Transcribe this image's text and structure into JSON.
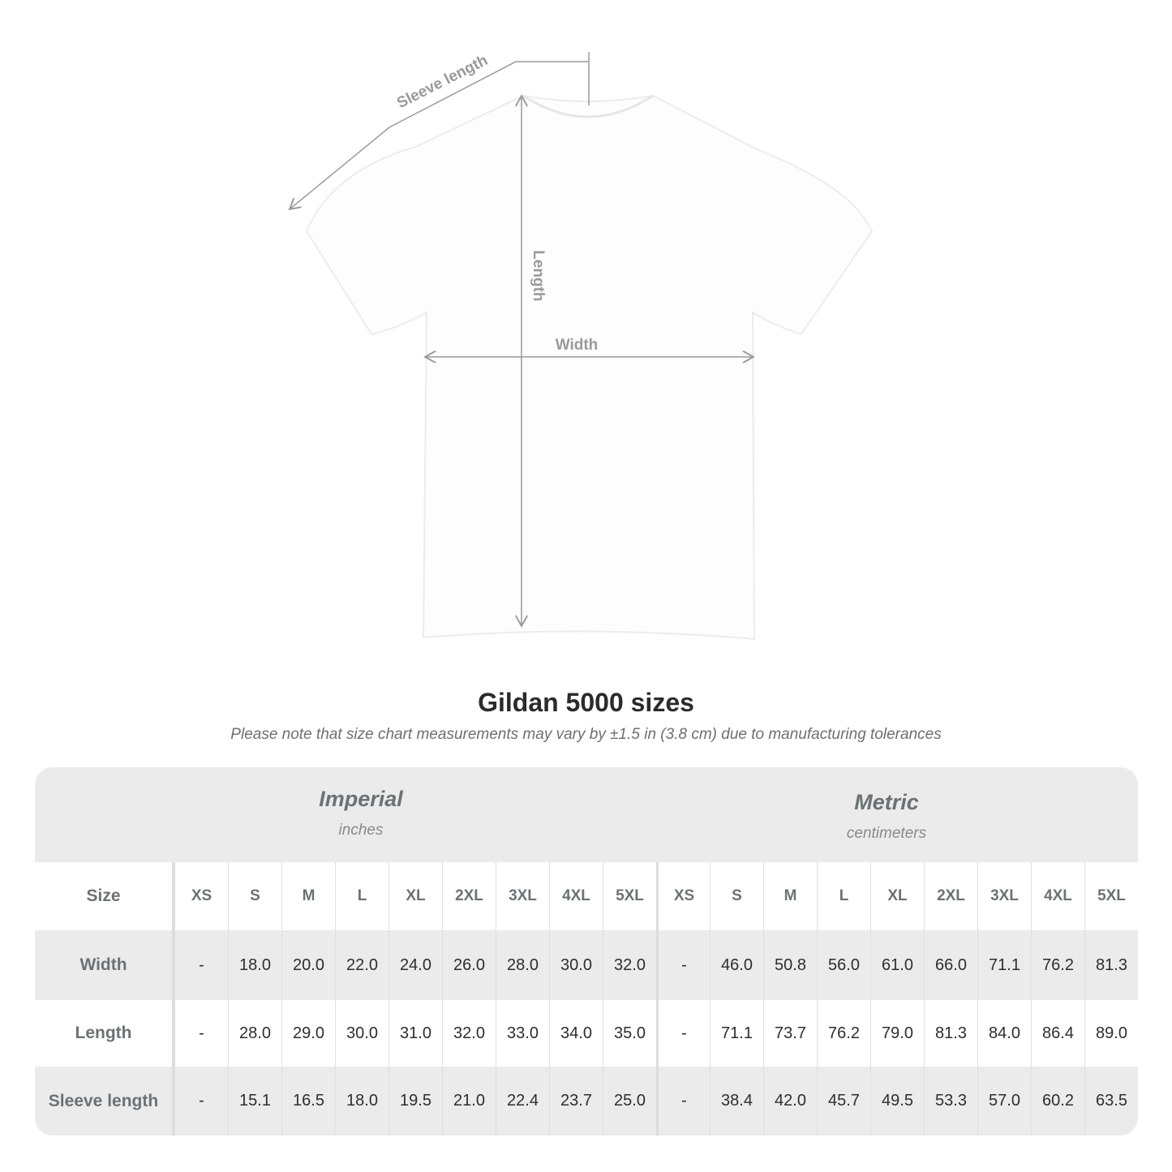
{
  "diagram": {
    "sleeve_label": "Sleeve length",
    "length_label": "Length",
    "width_label": "Width"
  },
  "title": "Gildan 5000 sizes",
  "note": "Please note that size chart measurements may vary by ±1.5 in (3.8 cm) due to manufacturing tolerances",
  "table": {
    "imperial": {
      "name": "Imperial",
      "unit": "inches"
    },
    "metric": {
      "name": "Metric",
      "unit": "centimeters"
    },
    "size_label": "Size",
    "sizes": [
      "XS",
      "S",
      "M",
      "L",
      "XL",
      "2XL",
      "3XL",
      "4XL",
      "5XL"
    ],
    "rows": [
      {
        "label": "Width",
        "imperial": [
          "-",
          "18.0",
          "20.0",
          "22.0",
          "24.0",
          "26.0",
          "28.0",
          "30.0",
          "32.0"
        ],
        "metric": [
          "-",
          "46.0",
          "50.8",
          "56.0",
          "61.0",
          "66.0",
          "71.1",
          "76.2",
          "81.3"
        ]
      },
      {
        "label": "Length",
        "imperial": [
          "-",
          "28.0",
          "29.0",
          "30.0",
          "31.0",
          "32.0",
          "33.0",
          "34.0",
          "35.0"
        ],
        "metric": [
          "-",
          "71.1",
          "73.7",
          "76.2",
          "79.0",
          "81.3",
          "84.0",
          "86.4",
          "89.0"
        ]
      },
      {
        "label": "Sleeve length",
        "imperial": [
          "-",
          "15.1",
          "16.5",
          "18.0",
          "19.5",
          "21.0",
          "22.4",
          "23.7",
          "25.0"
        ],
        "metric": [
          "-",
          "38.4",
          "42.0",
          "45.7",
          "49.5",
          "53.3",
          "57.0",
          "60.2",
          "63.5"
        ]
      }
    ]
  },
  "colors": {
    "header_bg": "#ebebeb",
    "label_text": "#6b7275",
    "measure_line": "#9a9a9a"
  }
}
